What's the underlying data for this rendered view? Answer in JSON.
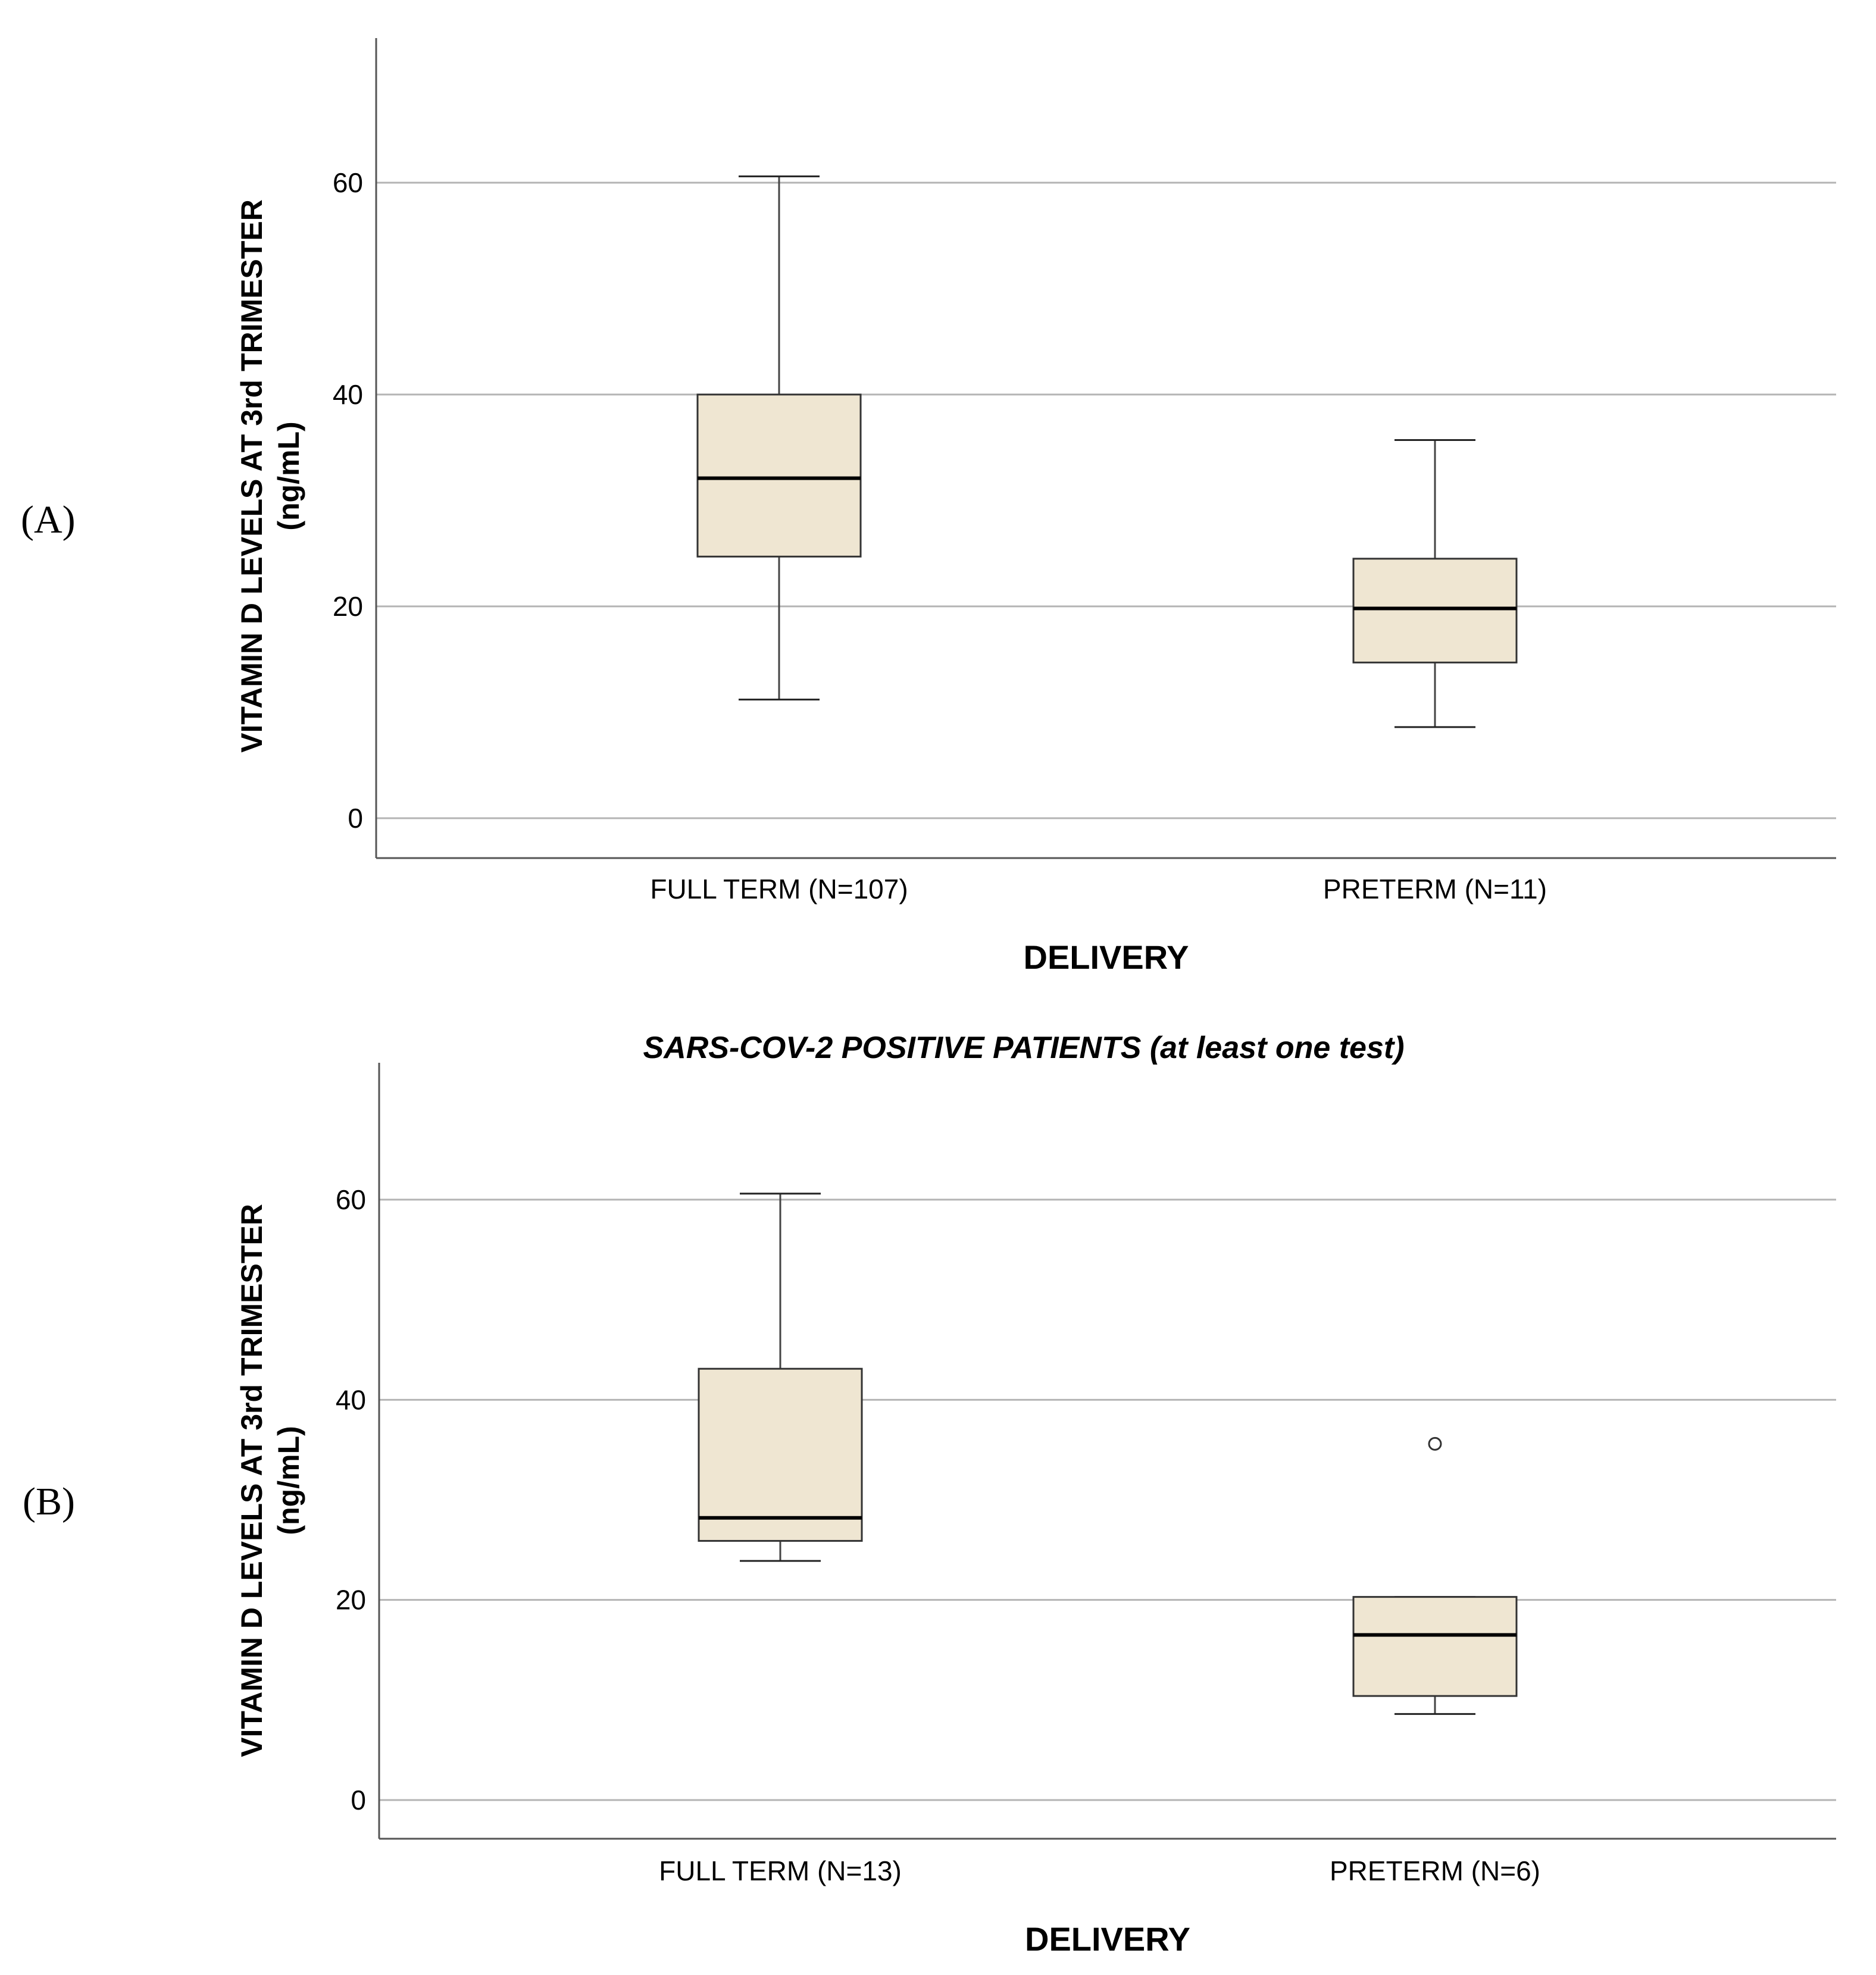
{
  "chart_data": [
    {
      "type": "box",
      "panel": "(A)",
      "title": "",
      "xlabel": "DELIVERY",
      "ylabel": "VITAMIN D LEVELS AT 3rd TRIMESTER",
      "ylabel_unit": "(ng/mL)",
      "ylim": [
        -4,
        74
      ],
      "yticks": [
        0,
        20,
        40,
        60
      ],
      "grid": true,
      "categories": [
        "FULL TERM (N=107)",
        "PRETERM (N=11)"
      ],
      "boxes": [
        {
          "whisker_low": 11.2,
          "q1": 24.7,
          "median": 32.1,
          "q3": 40.0,
          "whisker_high": 60.6,
          "outliers": []
        },
        {
          "whisker_low": 8.6,
          "q1": 14.7,
          "median": 19.8,
          "q3": 24.5,
          "whisker_high": 35.7,
          "outliers": []
        }
      ],
      "box_color": "#efe6d2"
    },
    {
      "type": "box",
      "panel": "(B)",
      "title": "SARS-COV-2 POSITIVE PATIENTS (at least one test)",
      "xlabel": "DELIVERY",
      "ylabel": "VITAMIN D LEVELS AT 3rd TRIMESTER",
      "ylabel_unit": "(ng/mL)",
      "ylim": [
        -4,
        74
      ],
      "yticks": [
        0,
        20,
        40,
        60
      ],
      "grid": true,
      "categories": [
        "FULL TERM (N=13)",
        "PRETERM (N=6)"
      ],
      "boxes": [
        {
          "whisker_low": 23.9,
          "q1": 25.9,
          "median": 28.2,
          "q3": 43.1,
          "whisker_high": 60.6,
          "outliers": []
        },
        {
          "whisker_low": 8.6,
          "q1": 10.4,
          "median": 16.5,
          "q3": 20.3,
          "whisker_high": 20.3,
          "outliers": [
            35.6
          ]
        }
      ],
      "box_color": "#efe6d2"
    }
  ]
}
